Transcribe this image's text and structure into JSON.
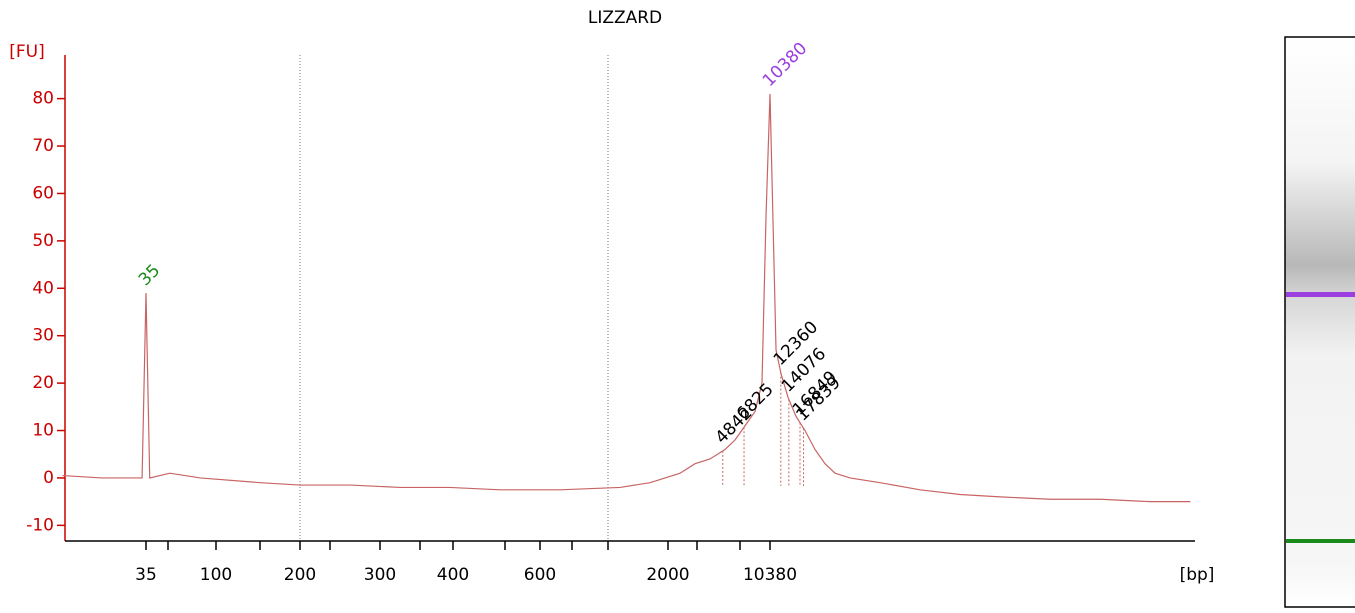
{
  "chart_data": {
    "type": "line",
    "title": "LIZZARD",
    "y_label": "[FU]",
    "x_label": "[bp]",
    "ylim": [
      -13.3,
      89.2
    ],
    "yticks": [
      -10,
      0,
      10,
      20,
      30,
      40,
      50,
      60,
      70,
      80
    ],
    "xlim": [
      10.4,
      9900000
    ],
    "xticks": [
      35,
      100,
      200,
      300,
      400,
      600,
      2000,
      10380
    ],
    "series": [
      {
        "color": "#c86464",
        "x": [
          10,
          18,
          32,
          33,
          35,
          37,
          50,
          79,
          144,
          200,
          258,
          325,
          395,
          498,
          724,
          1275,
          1690,
          2430,
          3095,
          3940,
          5020,
          5900,
          6940,
          8150,
          9120,
          9730,
          10380,
          10880,
          11440,
          12400,
          13880,
          15800,
          18260,
          21470,
          25240,
          29680,
          37800,
          61400,
          117000,
          223000,
          426000,
          958000,
          2150000,
          4810000,
          9190000
        ],
        "values": [
          0.5,
          0,
          0,
          0,
          39,
          0,
          1,
          0,
          -1,
          -1.5,
          -1.5,
          -2,
          -2,
          -2.5,
          -2.5,
          -2,
          -1,
          1,
          3,
          4,
          6,
          8,
          11,
          14,
          20,
          55,
          81,
          55,
          27,
          22,
          17,
          13,
          10,
          6,
          3,
          1,
          0,
          -1,
          -2.5,
          -3.5,
          -4,
          -4.5,
          -4.5,
          -5,
          -5
        ]
      }
    ],
    "peak_labels": [
      {
        "x": 35,
        "color": "#1a8a1a"
      },
      {
        "x": 10380,
        "color": "#9b3fe0"
      },
      {
        "x": 4842,
        "color": "#000000"
      },
      {
        "x": 6825,
        "color": "#000000"
      },
      {
        "x": 12360,
        "color": "#000000"
      },
      {
        "x": 14076,
        "color": "#000000"
      },
      {
        "x": 16849,
        "color": "#000000"
      },
      {
        "x": 17839,
        "color": "#000000"
      }
    ]
  }
}
